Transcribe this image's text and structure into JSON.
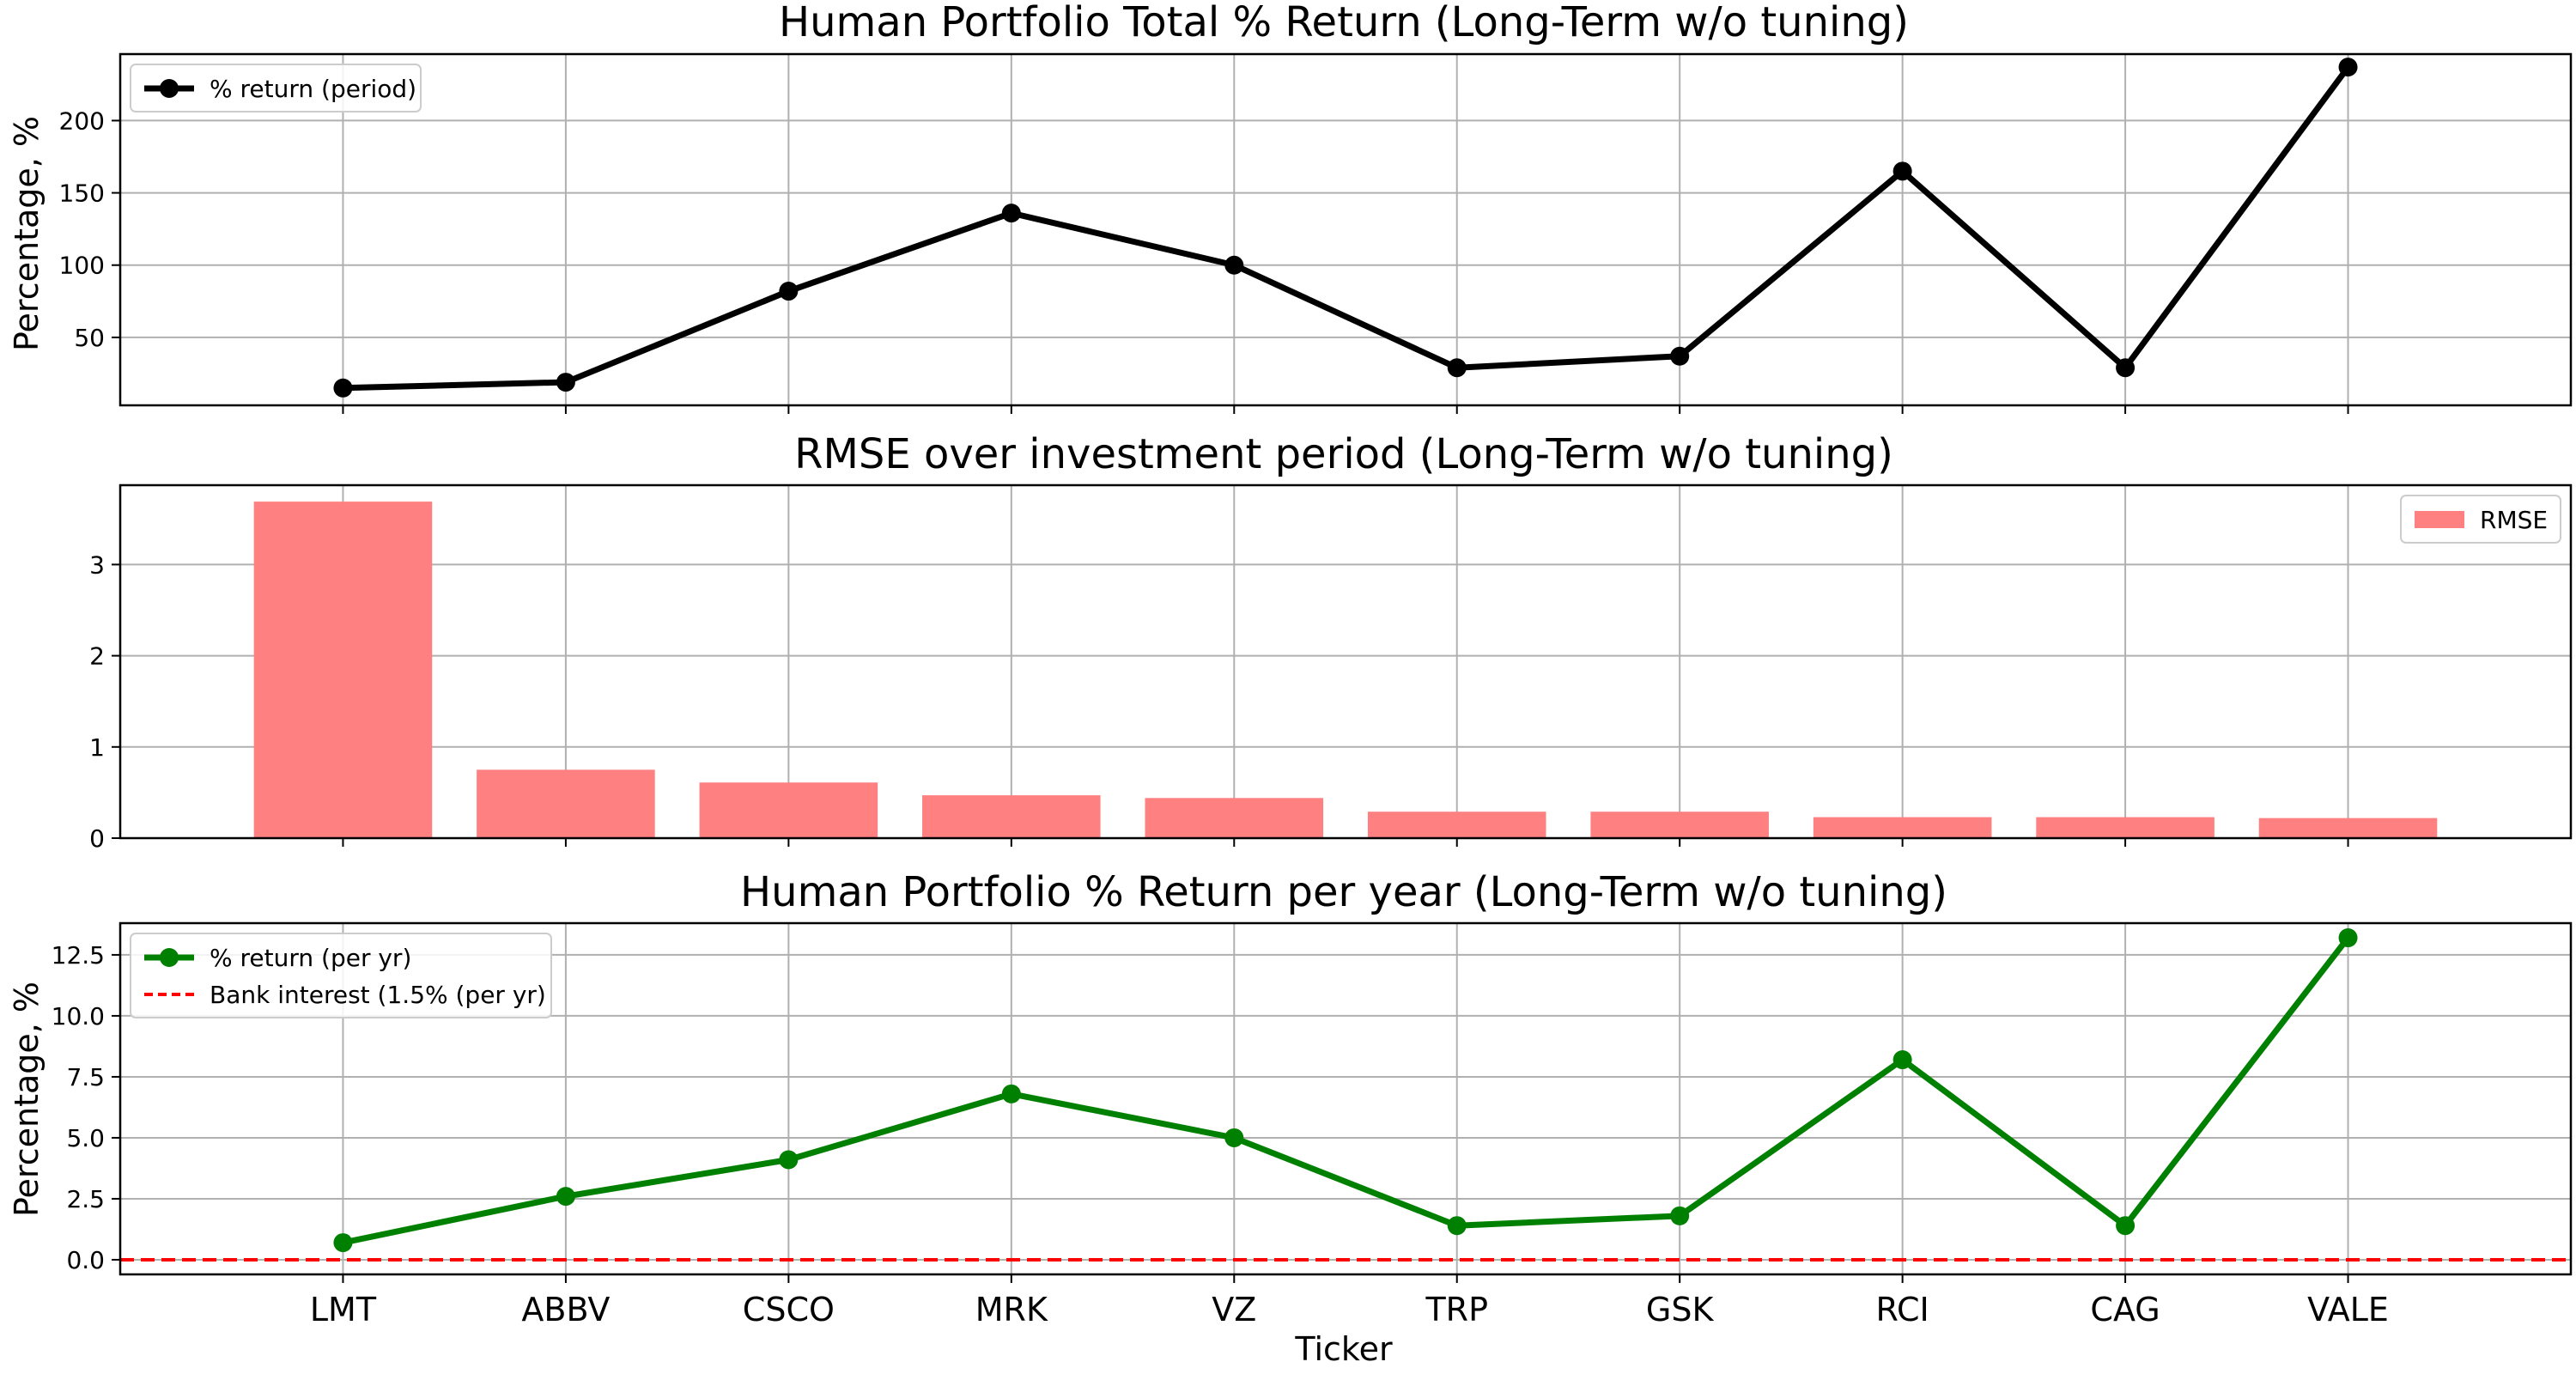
{
  "x_axis_label": "Ticker",
  "chart_data": [
    {
      "type": "line",
      "title": "Human Portfolio Total % Return (Long-Term w/o tuning)",
      "xlabel": "",
      "ylabel": "Percentage, %",
      "categories": [
        "LMT",
        "ABBV",
        "CSCO",
        "MRK",
        "VZ",
        "TRP",
        "GSK",
        "RCI",
        "CAG",
        "VALE"
      ],
      "series": [
        {
          "name": "% return (period)",
          "color": "#000000",
          "marker": "circle",
          "values": [
            15,
            19,
            82,
            136,
            100,
            29,
            37,
            165,
            29,
            237
          ]
        }
      ],
      "ylim": [
        3,
        246
      ],
      "yticks": [
        50,
        100,
        150,
        200
      ],
      "grid": true,
      "legend_position": "top-left"
    },
    {
      "type": "bar",
      "title": "RMSE over investment period (Long-Term w/o tuning)",
      "xlabel": "",
      "ylabel": "",
      "categories": [
        "LMT",
        "ABBV",
        "CSCO",
        "MRK",
        "VZ",
        "TRP",
        "GSK",
        "RCI",
        "CAG",
        "VALE"
      ],
      "series": [
        {
          "name": "RMSE",
          "color": "#ff8080",
          "values": [
            3.69,
            0.75,
            0.61,
            0.47,
            0.44,
            0.29,
            0.29,
            0.23,
            0.23,
            0.22
          ]
        }
      ],
      "ylim": [
        0,
        3.87
      ],
      "yticks": [
        0,
        1,
        2,
        3
      ],
      "grid": true,
      "legend_position": "top-right"
    },
    {
      "type": "line",
      "title": "Human Portfolio % Return per year (Long-Term w/o tuning)",
      "xlabel": "Ticker",
      "ylabel": "Percentage, %",
      "categories": [
        "LMT",
        "ABBV",
        "CSCO",
        "MRK",
        "VZ",
        "TRP",
        "GSK",
        "RCI",
        "CAG",
        "VALE"
      ],
      "series": [
        {
          "name": "% return (per yr)",
          "color": "#008000",
          "marker": "circle",
          "values": [
            0.7,
            2.6,
            4.1,
            6.8,
            5.0,
            1.4,
            1.8,
            8.2,
            1.4,
            13.2
          ]
        }
      ],
      "reference_lines": [
        {
          "name": "Bank interest (1.5% (per yr)",
          "color": "#ff0000",
          "style": "dashed",
          "y": 0
        }
      ],
      "ylim": [
        -0.6,
        13.8
      ],
      "yticks": [
        0.0,
        2.5,
        5.0,
        7.5,
        10.0,
        12.5
      ],
      "grid": true,
      "legend_position": "top-left"
    }
  ]
}
